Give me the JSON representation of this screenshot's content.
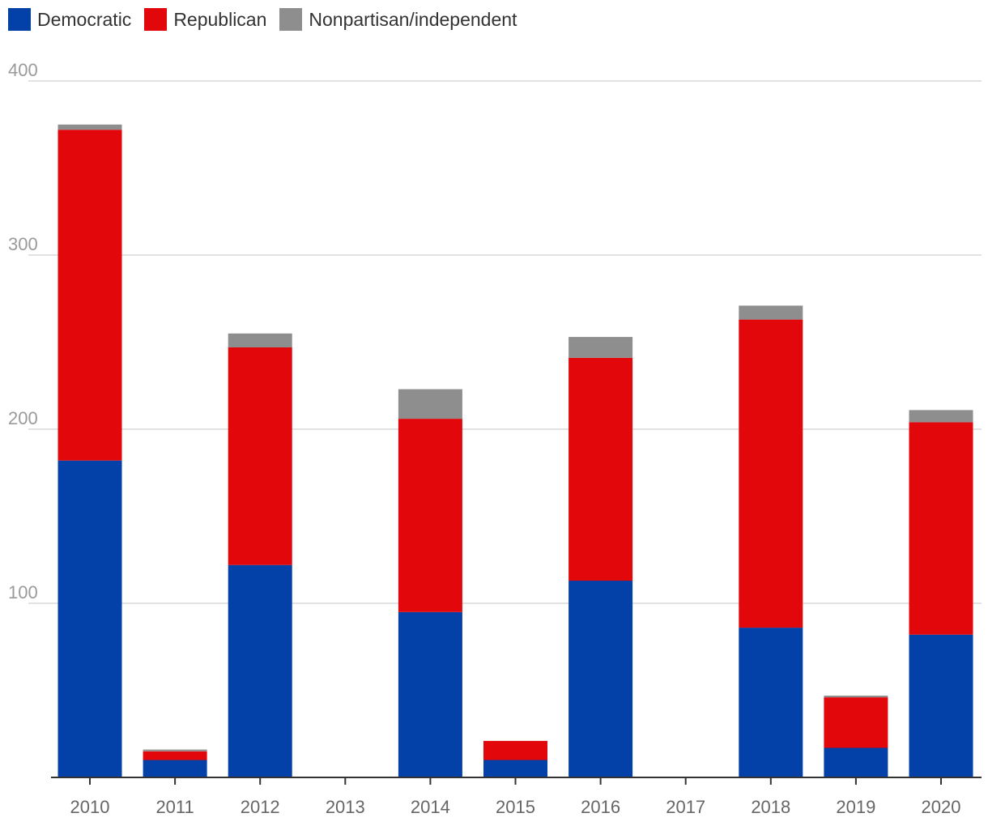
{
  "legend": [
    {
      "label": "Democratic",
      "color": "#0340a8"
    },
    {
      "label": "Republican",
      "color": "#e2070b"
    },
    {
      "label": "Nonpartisan/independent",
      "color": "#8e8e8e"
    }
  ],
  "chart_data": {
    "type": "bar",
    "stacked": true,
    "categories": [
      "2010",
      "2011",
      "2012",
      "2013",
      "2014",
      "2015",
      "2016",
      "2017",
      "2018",
      "2019",
      "2020"
    ],
    "series": [
      {
        "name": "Democratic",
        "color": "#0340a8",
        "values": [
          182,
          10,
          122,
          0,
          95,
          10,
          113,
          0,
          86,
          17,
          82
        ]
      },
      {
        "name": "Republican",
        "color": "#e2070b",
        "values": [
          190,
          5,
          125,
          0,
          111,
          11,
          128,
          0,
          177,
          29,
          122
        ]
      },
      {
        "name": "Nonpartisan/independent",
        "color": "#8e8e8e",
        "values": [
          3,
          1,
          8,
          0,
          17,
          0,
          12,
          0,
          8,
          1,
          7
        ]
      }
    ],
    "yticks": [
      100,
      200,
      300,
      400
    ],
    "ylim": [
      0,
      400
    ],
    "grid": true,
    "legend_position": "top-left",
    "title": "",
    "xlabel": "",
    "ylabel": ""
  }
}
